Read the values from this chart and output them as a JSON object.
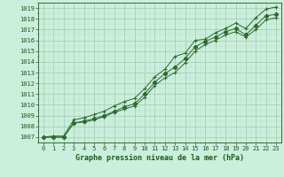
{
  "title": "Graphe pression niveau de la mer (hPa)",
  "hours": [
    0,
    1,
    2,
    3,
    4,
    5,
    6,
    7,
    8,
    9,
    10,
    11,
    12,
    13,
    14,
    15,
    16,
    17,
    18,
    19,
    20,
    21,
    22,
    23
  ],
  "series_top": [
    1007.0,
    1007.1,
    1007.1,
    1008.6,
    1008.8,
    1009.1,
    1009.4,
    1009.9,
    1010.3,
    1010.6,
    1011.5,
    1012.6,
    1013.3,
    1014.5,
    1014.8,
    1016.0,
    1016.1,
    1016.7,
    1017.1,
    1017.6,
    1017.1,
    1018.1,
    1018.9,
    1019.1
  ],
  "series_mid": [
    1007.0,
    1007.0,
    1007.0,
    1008.3,
    1008.5,
    1008.7,
    1009.0,
    1009.4,
    1009.8,
    1010.1,
    1011.0,
    1012.1,
    1012.9,
    1013.5,
    1014.3,
    1015.4,
    1015.9,
    1016.3,
    1016.8,
    1017.1,
    1016.5,
    1017.4,
    1018.3,
    1018.4
  ],
  "series_bot": [
    1007.0,
    1007.0,
    1007.0,
    1008.3,
    1008.4,
    1008.6,
    1008.9,
    1009.3,
    1009.6,
    1009.9,
    1010.7,
    1011.8,
    1012.5,
    1013.0,
    1013.9,
    1015.0,
    1015.6,
    1016.0,
    1016.5,
    1016.8,
    1016.3,
    1017.0,
    1017.9,
    1018.1
  ],
  "ylim_min": 1006.5,
  "ylim_max": 1019.5,
  "yticks": [
    1007,
    1008,
    1009,
    1010,
    1011,
    1012,
    1013,
    1014,
    1015,
    1016,
    1017,
    1018,
    1019
  ],
  "line_color": "#2d6a2d",
  "bg_color": "#cceedd",
  "grid_major_color": "#99ccaa",
  "grid_minor_color": "#bbddcc",
  "text_color": "#1a5c1a",
  "lw": 0.7,
  "marker_size": 2.2,
  "title_fontsize": 6.0,
  "tick_fontsize": 5.0
}
